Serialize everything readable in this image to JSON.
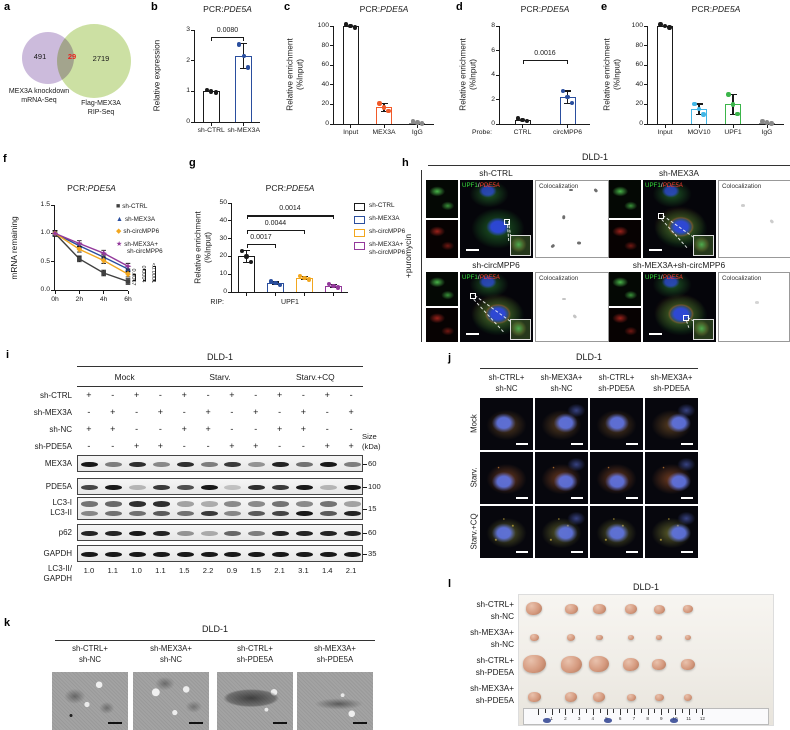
{
  "figure": {
    "background": "#ffffff"
  },
  "panels": {
    "a": {
      "letter": "a",
      "venn": {
        "left_count": "491",
        "overlap_count": "29",
        "right_count": "2719",
        "left_label": [
          "MEX3A knockdown",
          "mRNA-Seq"
        ],
        "right_label": [
          "Flag-MEX3A",
          "RIP-Seq"
        ],
        "left_color": "#c9b7da",
        "right_color": "#cadf9e",
        "overlap_count_color": "#e8231f"
      }
    },
    "b": {
      "letter": "b"
    },
    "c": {
      "letter": "c"
    },
    "d": {
      "letter": "d"
    },
    "e": {
      "letter": "e"
    },
    "f": {
      "letter": "f"
    },
    "g": {
      "letter": "g"
    },
    "h": {
      "letter": "h",
      "cell_line": "DLD-1",
      "side_label": "+puromycin",
      "groups": [
        "sh-CTRL",
        "sh-MEX3A",
        "sh-circMPP6",
        "sh-MEX3A+sh-circMPP6"
      ],
      "merge_label": {
        "green": "UPF1",
        "sep": "/",
        "red": "PDE5A"
      },
      "coloc_label": "Colocalization"
    },
    "i": {
      "letter": "i",
      "cell_line": "DLD-1",
      "groups": [
        "Mock",
        "Starv.",
        "Starv.+CQ"
      ],
      "size_label": [
        "Size",
        "(kDa)"
      ],
      "conditions": [
        {
          "label": "sh-CTRL",
          "values": [
            "+",
            "-",
            "+",
            "-",
            "+",
            "-",
            "+",
            "-",
            "+",
            "-",
            "+",
            "-"
          ]
        },
        {
          "label": "sh-MEX3A",
          "values": [
            "-",
            "+",
            "-",
            "+",
            "-",
            "+",
            "-",
            "+",
            "-",
            "+",
            "-",
            "+"
          ]
        },
        {
          "label": "sh-NC",
          "values": [
            "+",
            "+",
            "-",
            "-",
            "+",
            "+",
            "-",
            "-",
            "+",
            "+",
            "-",
            "-"
          ]
        },
        {
          "label": "sh-PDE5A",
          "values": [
            "-",
            "-",
            "+",
            "+",
            "-",
            "-",
            "+",
            "+",
            "-",
            "-",
            "+",
            "+"
          ]
        }
      ],
      "blots": [
        {
          "label": [
            "MEX3A"
          ],
          "size": "60",
          "bands": [
            [
              0.95,
              0.5,
              0.85,
              0.45,
              0.85,
              0.5,
              0.8,
              0.4,
              0.9,
              0.55,
              0.95,
              0.5
            ]
          ]
        },
        {
          "label": [
            "PDE5A"
          ],
          "size": "100",
          "bands": [
            [
              0.75,
              0.95,
              0.25,
              0.8,
              0.7,
              0.95,
              0.2,
              0.85,
              0.8,
              0.95,
              0.25,
              0.95
            ]
          ]
        },
        {
          "label": [
            "LC3-I",
            "LC3-II"
          ],
          "size": "15",
          "bands": [
            [
              0.55,
              0.6,
              0.85,
              0.85,
              0.35,
              0.3,
              0.45,
              0.45,
              0.55,
              0.45,
              0.55,
              0.35
            ],
            [
              0.45,
              0.55,
              0.55,
              0.65,
              0.55,
              0.8,
              0.45,
              0.65,
              0.75,
              0.95,
              0.65,
              0.9
            ]
          ]
        },
        {
          "label": [
            "p62"
          ],
          "size": "60",
          "bands": [
            [
              0.9,
              0.9,
              0.95,
              0.9,
              0.4,
              0.3,
              0.6,
              0.5,
              0.9,
              0.9,
              0.9,
              0.9
            ]
          ]
        },
        {
          "label": [
            "GAPDH"
          ],
          "size": "35",
          "bands": [
            [
              0.95,
              0.95,
              0.95,
              0.95,
              0.95,
              0.95,
              0.95,
              0.95,
              0.95,
              0.95,
              0.95,
              0.95
            ]
          ]
        }
      ],
      "ratio_label": [
        "LC3-II/",
        "GAPDH"
      ],
      "ratios": [
        "1.0",
        "1.1",
        "1.0",
        "1.1",
        "1.5",
        "2.2",
        "0.9",
        "1.5",
        "2.1",
        "3.1",
        "1.4",
        "2.1"
      ]
    },
    "j": {
      "letter": "j",
      "cell_line": "DLD-1",
      "col_labels": [
        [
          "sh-CTRL+",
          "sh-NC"
        ],
        [
          "sh-MEX3A+",
          "sh-NC"
        ],
        [
          "sh-CTRL+",
          "sh-PDE5A"
        ],
        [
          "sh-MEX3A+",
          "sh-PDE5A"
        ]
      ],
      "row_labels": [
        "Mock",
        "Starv.",
        "Starv.+CQ"
      ]
    },
    "k": {
      "letter": "k",
      "cell_line": "DLD-1",
      "col_labels": [
        [
          "sh-CTRL+",
          "sh-NC"
        ],
        [
          "sh-MEX3A+",
          "sh-NC"
        ],
        [
          "sh-CTRL+",
          "sh-PDE5A"
        ],
        [
          "sh-MEX3A+",
          "sh-PDE5A"
        ]
      ]
    },
    "l": {
      "letter": "l",
      "cell_line": "DLD-1",
      "row_labels": [
        [
          "sh-CTRL+",
          "sh-NC"
        ],
        [
          "sh-MEX3A+",
          "sh-NC"
        ],
        [
          "sh-CTRL+",
          "sh-PDE5A"
        ],
        [
          "sh-MEX3A+",
          "sh-PDE5A"
        ]
      ],
      "ruler_numbers": [
        "1",
        "2",
        "3",
        "4",
        "5",
        "6",
        "7",
        "8",
        "9",
        "10",
        "11",
        "12"
      ],
      "tumor_rows": [
        {
          "sizes": [
            16,
            13,
            13,
            12,
            11,
            10
          ]
        },
        {
          "sizes": [
            9,
            8,
            7,
            6,
            6,
            6
          ]
        },
        {
          "sizes": [
            23,
            21,
            20,
            16,
            14,
            14
          ]
        },
        {
          "sizes": [
            13,
            12,
            12,
            9,
            9,
            8
          ]
        }
      ]
    }
  },
  "chart_data": [
    {
      "id": "b",
      "type": "bar",
      "title": {
        "prefix": "PCR:",
        "gene": "PDE5A"
      },
      "ylabel": [
        "Relative expression"
      ],
      "ylim": [
        0,
        3
      ],
      "yticks": [
        "0",
        "1",
        "2",
        "3"
      ],
      "categories": [
        "sh-CTRL",
        "sh-MEX3A"
      ],
      "values": [
        1.0,
        2.15
      ],
      "errors": [
        0.04,
        0.42
      ],
      "colors": [
        "#1a1a1a",
        "#2a4e9e"
      ],
      "sig": [
        {
          "from": 0,
          "to": 1,
          "y": 2.78,
          "label": "0.0080"
        }
      ]
    },
    {
      "id": "c",
      "type": "bar",
      "title": {
        "prefix": "PCR:",
        "gene": "PDE5A"
      },
      "ylabel": [
        "Relative enrichment",
        "(%Input)"
      ],
      "ylim": [
        0,
        100
      ],
      "yticks": [
        "0",
        "20",
        "40",
        "60",
        "80",
        "100"
      ],
      "categories": [
        "Input",
        "MEX3A",
        "IgG"
      ],
      "values": [
        100,
        17,
        1.5
      ],
      "errors": [
        1.5,
        4.5,
        1
      ],
      "colors": [
        "#1a1a1a",
        "#f15a29",
        "#8a8a8a"
      ]
    },
    {
      "id": "d",
      "type": "bar",
      "title": {
        "prefix": "PCR:",
        "gene": "PDE5A"
      },
      "ylabel": [
        "Relative enrichment",
        "(%Input)"
      ],
      "ylim": [
        0,
        8
      ],
      "yticks": [
        "0",
        "2",
        "4",
        "6",
        "8"
      ],
      "categories": [
        "CTRL",
        "circMPP6"
      ],
      "cat_prefix": "Probe:",
      "values": [
        0.35,
        2.2
      ],
      "errors": [
        0.12,
        0.55
      ],
      "colors": [
        "#1a1a1a",
        "#2a4e9e"
      ],
      "sig": [
        {
          "from": 0,
          "to": 1,
          "y": 5.2,
          "label": "0.0016"
        }
      ]
    },
    {
      "id": "e",
      "type": "bar",
      "title": {
        "prefix": "PCR:",
        "gene": "PDE5A"
      },
      "ylabel": [
        "Relative enrichment",
        "(%Input)"
      ],
      "ylim": [
        0,
        100
      ],
      "yticks": [
        "0",
        "20",
        "40",
        "60",
        "80",
        "100"
      ],
      "categories": [
        "Input",
        "MOV10",
        "UPF1",
        "IgG"
      ],
      "values": [
        100,
        15,
        20,
        1.5
      ],
      "errors": [
        1.5,
        6,
        11,
        1
      ],
      "colors": [
        "#1a1a1a",
        "#41b6e6",
        "#3bb54a",
        "#8a8a8a"
      ]
    },
    {
      "id": "f",
      "type": "line",
      "title": {
        "prefix": "PCR:",
        "gene": "PDE5A"
      },
      "ylabel": [
        "mRNA remaining"
      ],
      "ylim": [
        0,
        1.5
      ],
      "yticks": [
        "0.0",
        "0.5",
        "1.0",
        "1.5"
      ],
      "x": [
        "0h",
        "2h",
        "4h",
        "6h"
      ],
      "point_error": 0.05,
      "series": [
        {
          "name": [
            "sh-CTRL"
          ],
          "marker": "■",
          "color": "#404040",
          "values": [
            1.0,
            0.55,
            0.3,
            0.15
          ]
        },
        {
          "name": [
            "sh-MEX3A"
          ],
          "marker": "▲",
          "color": "#2a4e9e",
          "values": [
            1.0,
            0.78,
            0.58,
            0.37
          ]
        },
        {
          "name": [
            "sh-circMPP6"
          ],
          "marker": "◆",
          "color": "#f2a71f",
          "values": [
            1.0,
            0.72,
            0.52,
            0.28
          ]
        },
        {
          "name": [
            "sh-MEX3A+",
            "sh-circMPP6"
          ],
          "marker": "★",
          "color": "#93399b",
          "values": [
            1.0,
            0.82,
            0.65,
            0.42
          ]
        }
      ],
      "sig": [
        {
          "from": 0,
          "to": 2,
          "label": "0.0067"
        },
        {
          "from": 0,
          "to": 1,
          "label": "0.0004"
        },
        {
          "from": 0,
          "to": 3,
          "label": "<0.0001"
        }
      ]
    },
    {
      "id": "g",
      "type": "bar",
      "title": {
        "prefix": "PCR:",
        "gene": "PDE5A"
      },
      "ylabel": [
        "Relative enrichment",
        "(%Input)"
      ],
      "ylim": [
        0,
        50
      ],
      "yticks": [
        "0",
        "10",
        "20",
        "30",
        "40",
        "50"
      ],
      "categories": [
        "sh-CTRL",
        "sh-MEX3A",
        "sh-circMPP6",
        "sh-MEX3A+sh-circMPP6"
      ],
      "hide_cat_labels": true,
      "x_axis": {
        "prefix": "RIP:",
        "label": "UPF1"
      },
      "values": [
        20,
        5,
        8,
        3.5
      ],
      "errors": [
        3.5,
        1,
        1,
        1.2
      ],
      "colors": [
        "#1a1a1a",
        "#2a4e9e",
        "#f2a71f",
        "#93399b"
      ],
      "sig": [
        {
          "from": 0,
          "to": 1,
          "y": 27,
          "label": "0.0017"
        },
        {
          "from": 0,
          "to": 2,
          "y": 35,
          "label": "0.0044"
        },
        {
          "from": 0,
          "to": 3,
          "y": 43,
          "label": "0.0014"
        }
      ],
      "legend": [
        {
          "label": [
            "sh-CTRL"
          ],
          "color": "#1a1a1a"
        },
        {
          "label": [
            "sh-MEX3A"
          ],
          "color": "#2a4e9e"
        },
        {
          "label": [
            "sh-circMPP6"
          ],
          "color": "#f2a71f"
        },
        {
          "label": [
            "sh-MEX3A+",
            "sh-circMPP6"
          ],
          "color": "#93399b"
        }
      ]
    }
  ]
}
